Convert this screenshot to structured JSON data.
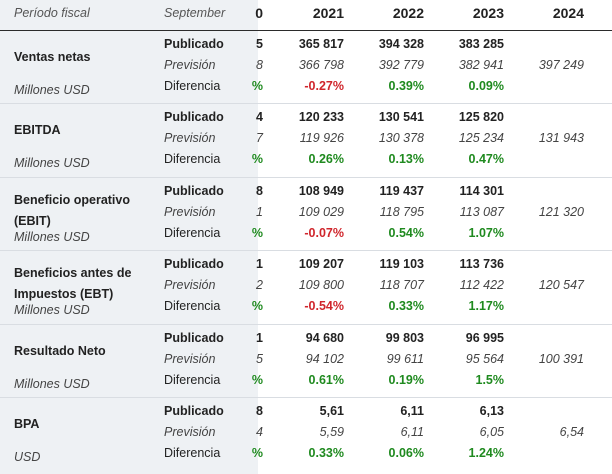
{
  "header": {
    "period_label": "Período fiscal",
    "month_label": "September",
    "truncated_year": "0",
    "years": [
      "2021",
      "2022",
      "2023",
      "2024"
    ]
  },
  "row_labels": {
    "published": "Publicado",
    "forecast": "Previsión",
    "difference": "Diferencia"
  },
  "metrics": [
    {
      "name": "Ventas netas",
      "unit": "Millones USD",
      "truncated": {
        "published": "5",
        "forecast": "8",
        "difference": "%"
      },
      "published": [
        "365 817",
        "394 328",
        "383 285",
        ""
      ],
      "forecast": [
        "366 798",
        "392 779",
        "382 941",
        "397 249"
      ],
      "difference": [
        "-0.27%",
        "0.39%",
        "0.09%",
        ""
      ]
    },
    {
      "name": "EBITDA",
      "unit": "Millones USD",
      "truncated": {
        "published": "4",
        "forecast": "7",
        "difference": "%"
      },
      "published": [
        "120 233",
        "130 541",
        "125 820",
        ""
      ],
      "forecast": [
        "119 926",
        "130 378",
        "125 234",
        "131 943"
      ],
      "difference": [
        "0.26%",
        "0.13%",
        "0.47%",
        ""
      ]
    },
    {
      "name": "Beneficio operativo (EBIT)",
      "unit": "Millones USD",
      "truncated": {
        "published": "8",
        "forecast": "1",
        "difference": "%"
      },
      "published": [
        "108 949",
        "119 437",
        "114 301",
        ""
      ],
      "forecast": [
        "109 029",
        "118 795",
        "113 087",
        "121 320"
      ],
      "difference": [
        "-0.07%",
        "0.54%",
        "1.07%",
        ""
      ]
    },
    {
      "name": "Beneficios antes de Impuestos (EBT)",
      "unit": "Millones USD",
      "truncated": {
        "published": "1",
        "forecast": "2",
        "difference": "%"
      },
      "published": [
        "109 207",
        "119 103",
        "113 736",
        ""
      ],
      "forecast": [
        "109 800",
        "118 707",
        "112 422",
        "120 547"
      ],
      "difference": [
        "-0.54%",
        "0.33%",
        "1.17%",
        ""
      ]
    },
    {
      "name": "Resultado Neto",
      "unit": "Millones USD",
      "truncated": {
        "published": "1",
        "forecast": "5",
        "difference": "%"
      },
      "published": [
        "94 680",
        "99 803",
        "96 995",
        ""
      ],
      "forecast": [
        "94 102",
        "99 611",
        "95 564",
        "100 391"
      ],
      "difference": [
        "0.61%",
        "0.19%",
        "1.5%",
        ""
      ]
    },
    {
      "name": "BPA",
      "unit": "USD",
      "truncated": {
        "published": "8",
        "forecast": "4",
        "difference": "%"
      },
      "published": [
        "5,61",
        "6,11",
        "6,13",
        ""
      ],
      "forecast": [
        "5,59",
        "6,11",
        "6,05",
        "6,54"
      ],
      "difference": [
        "0.33%",
        "0.06%",
        "1.24%",
        ""
      ]
    }
  ],
  "colors": {
    "positive": "#1f8a1f",
    "negative": "#d0262c",
    "label_panel": "#eef1f4"
  }
}
